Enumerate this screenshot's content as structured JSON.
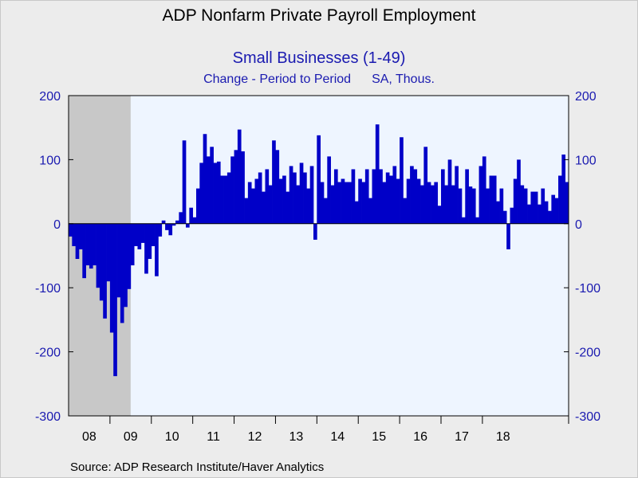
{
  "header": {
    "title": "ADP Nonfarm Private Payroll Employment",
    "subtitle": "Small Businesses (1-49)",
    "measure": "Change - Period to Period",
    "units": "SA, Thous."
  },
  "source": "Source:  ADP Research Institute/Haver Analytics",
  "colors": {
    "bar": "#0000c8",
    "plot_bg": "#eef5ff",
    "recession": "#c8c8c8",
    "axis_text": "#1a1ab0"
  },
  "chart_data": {
    "type": "bar",
    "title": "Small Businesses (1-49)",
    "ylabel": "",
    "xlabel": "",
    "ylim": [
      -300,
      200
    ],
    "yticks": [
      200,
      100,
      0,
      -100,
      -200,
      -300
    ],
    "x_tick_labels": [
      "08",
      "09",
      "10",
      "11",
      "12",
      "13",
      "14",
      "15",
      "16",
      "17",
      "18"
    ],
    "x_start": "2008-01",
    "recession_shading": {
      "start": "2008-01",
      "end": "2009-06"
    },
    "grid": false,
    "series": [
      {
        "values": [
          -20,
          -35,
          -55,
          -40,
          -85,
          -65,
          -70,
          -65,
          -100,
          -120,
          -148,
          -90,
          -170,
          -238,
          -115,
          -155,
          -130,
          -102,
          -65,
          -35,
          -40,
          -30,
          -78,
          -55,
          -35,
          -82,
          -20,
          5,
          -10,
          -18,
          -3,
          5,
          18,
          130,
          -6,
          25,
          10,
          55,
          95,
          140,
          105,
          120,
          95,
          97,
          75,
          75,
          80,
          105,
          115,
          147,
          113,
          40,
          65,
          55,
          70,
          80,
          50,
          85,
          60,
          130,
          115,
          70,
          75,
          50,
          90,
          80,
          60,
          95,
          80,
          55,
          90,
          -25,
          138,
          65,
          40,
          105,
          60,
          85,
          65,
          70,
          65,
          65,
          85,
          35,
          70,
          65,
          85,
          40,
          85,
          155,
          85,
          65,
          80,
          75,
          90,
          70,
          135,
          40,
          70,
          90,
          85,
          70,
          60,
          120,
          65,
          60,
          65,
          28,
          85,
          60,
          100,
          60,
          90,
          55,
          10,
          85,
          58,
          55,
          10,
          90,
          105,
          55,
          75,
          75,
          35,
          55,
          20,
          -40,
          25,
          70,
          100,
          60,
          55,
          30,
          50,
          50,
          30,
          55,
          35,
          20,
          45,
          40,
          75,
          108,
          65
        ]
      }
    ]
  }
}
